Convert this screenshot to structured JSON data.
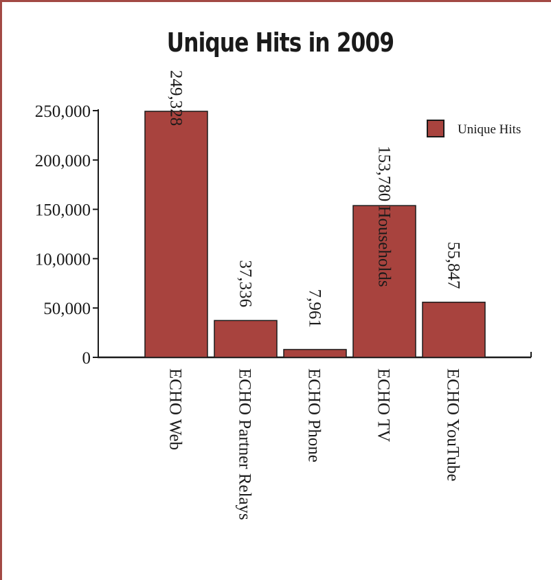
{
  "chart_data": {
    "type": "bar",
    "title": "Unique Hits in 2009",
    "categories": [
      "ECHO Web",
      "ECHO Partner Relays",
      "ECHO Phone",
      "ECHO TV",
      "ECHO YouTube"
    ],
    "series": [
      {
        "name": "Unique Hits",
        "values": [
          249328,
          37336,
          7961,
          153780,
          55847
        ],
        "labels": [
          "249,328",
          "37,336",
          "7,961",
          "153,780 Households",
          "55,847"
        ]
      }
    ],
    "y_ticks": [
      {
        "value": 0,
        "label": "0"
      },
      {
        "value": 50000,
        "label": "50,000"
      },
      {
        "value": 100000,
        "label": "10,0000"
      },
      {
        "value": 150000,
        "label": "150,000"
      },
      {
        "value": 200000,
        "label": "200,000"
      },
      {
        "value": 250000,
        "label": "250,000"
      }
    ],
    "ylim": [
      0,
      250000
    ],
    "xlabel": "",
    "ylabel": "",
    "grid": false,
    "legend": "top-right",
    "colors": {
      "bar": "#a8433e",
      "bar_stroke": "#1a1a1a",
      "frame": "#a24a45"
    }
  }
}
